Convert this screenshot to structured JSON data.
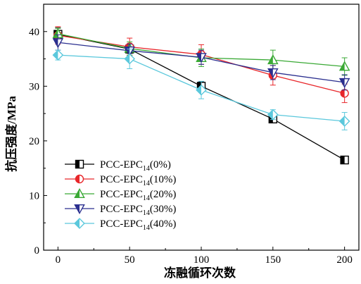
{
  "chart_data": {
    "type": "line",
    "title": "",
    "xlabel": "冻融循环次数",
    "ylabel": "抗压强度/MPa",
    "x": [
      0,
      50,
      100,
      150,
      200
    ],
    "xlim": [
      -10,
      210
    ],
    "ylim": [
      0,
      45
    ],
    "xticks": [
      0,
      50,
      100,
      150,
      200
    ],
    "yticks": [
      0,
      10,
      20,
      30,
      40
    ],
    "grid": false,
    "legend_position": "bottom-left",
    "series": [
      {
        "name_base": "PCC-EPC",
        "name_sub": "14",
        "name_suffix": "(0%)",
        "color": "#000000",
        "marker": "square-half",
        "values": [
          39.5,
          36.8,
          30.0,
          24.0,
          16.5
        ],
        "errors": [
          1.2,
          0.8,
          0.8,
          0.5,
          0.6
        ]
      },
      {
        "name_base": "PCC-EPC",
        "name_sub": "14",
        "name_suffix": "(10%)",
        "color": "#e8262a",
        "marker": "circle-half",
        "values": [
          39.3,
          37.2,
          35.8,
          32.0,
          28.7
        ],
        "errors": [
          1.6,
          1.6,
          1.8,
          1.8,
          1.7
        ]
      },
      {
        "name_base": "PCC-EPC",
        "name_sub": "14",
        "name_suffix": "(20%)",
        "color": "#3aa935",
        "marker": "triangle-up",
        "values": [
          39.6,
          36.9,
          35.2,
          34.8,
          33.6
        ],
        "errors": [
          1.0,
          1.2,
          1.6,
          1.8,
          1.6
        ]
      },
      {
        "name_base": "PCC-EPC",
        "name_sub": "14",
        "name_suffix": "(30%)",
        "color": "#2b2f8f",
        "marker": "triangle-down",
        "values": [
          38.0,
          36.5,
          35.3,
          32.5,
          30.7
        ],
        "errors": [
          1.4,
          1.2,
          1.3,
          1.3,
          1.4
        ]
      },
      {
        "name_base": "PCC-EPC",
        "name_sub": "14",
        "name_suffix": "(40%)",
        "color": "#5bc8dc",
        "marker": "diamond",
        "values": [
          35.7,
          35.0,
          29.3,
          24.8,
          23.6
        ],
        "errors": [
          0.9,
          1.8,
          1.6,
          0.9,
          1.6
        ]
      }
    ]
  }
}
